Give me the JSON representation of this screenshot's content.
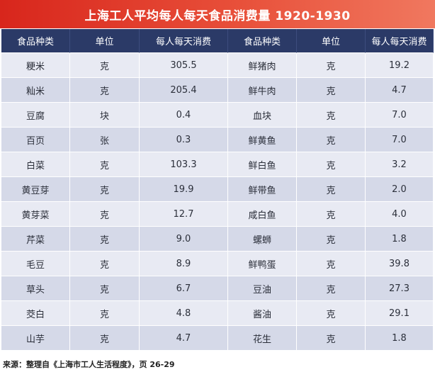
{
  "title": "上海工人平均每人每天食品消费量 1920-1930",
  "headers": [
    "食品种类",
    "单位",
    "每人每天消费",
    "食品种类",
    "单位",
    "每人每天消费"
  ],
  "rows": [
    [
      "粳米",
      "克",
      "305.5",
      "鲜猪肉",
      "克",
      "19.2"
    ],
    [
      "籼米",
      "克",
      "205.4",
      "鲜牛肉",
      "克",
      "4.7"
    ],
    [
      "豆腐",
      "块",
      "0.4",
      "血块",
      "克",
      "7.0"
    ],
    [
      "百页",
      "张",
      "0.3",
      "鲜黄鱼",
      "克",
      "7.0"
    ],
    [
      "白菜",
      "克",
      "103.3",
      "鲜白鱼",
      "克",
      "3.2"
    ],
    [
      "黄豆芽",
      "克",
      "19.9",
      "鲜带鱼",
      "克",
      "2.0"
    ],
    [
      "黄芽菜",
      "克",
      "12.7",
      "咸白鱼",
      "克",
      "4.0"
    ],
    [
      "芹菜",
      "克",
      "9.0",
      "螺蛳",
      "克",
      "1.8"
    ],
    [
      "毛豆",
      "克",
      "8.9",
      "鲜鸭蛋",
      "克",
      "39.8"
    ],
    [
      "草头",
      "克",
      "6.7",
      "豆油",
      "克",
      "27.3"
    ],
    [
      "茭白",
      "克",
      "4.8",
      "酱油",
      "克",
      "29.1"
    ],
    [
      "山芋",
      "克",
      "4.7",
      "花生",
      "克",
      "1.8"
    ]
  ],
  "source": "来源：整理自《上海市工人生活程度》，页 26-29",
  "colors": {
    "title_bg": "#d8261c",
    "header_bg": "#2b3a67",
    "row_light": "#e8eaf3",
    "row_dark": "#d5d9e8"
  }
}
